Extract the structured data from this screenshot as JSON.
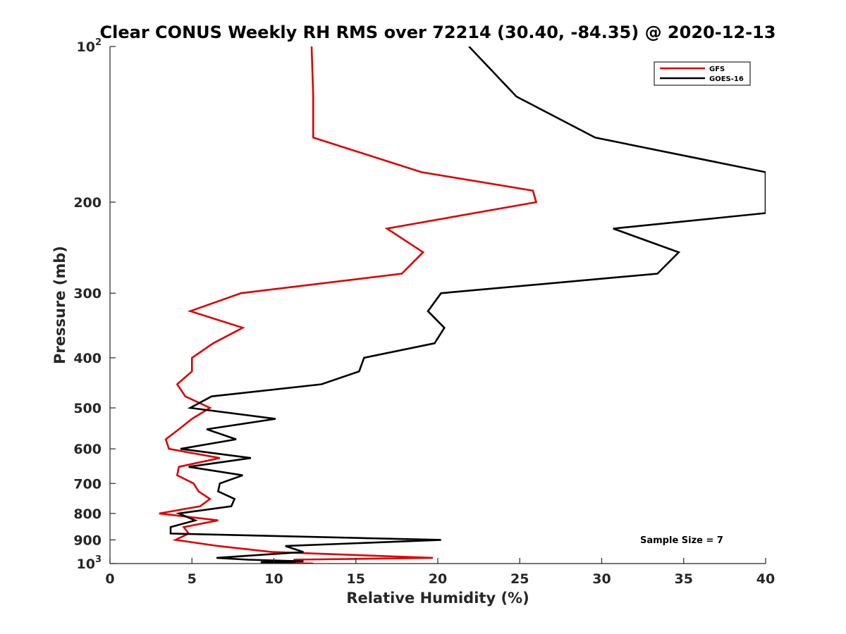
{
  "chart_data": {
    "type": "line",
    "title": "Clear CONUS Weekly RH RMS over 72214 (30.40, -84.35) @ 2020-12-13",
    "xlabel": "Relative Humidity (%)",
    "ylabel": "Pressure (mb)",
    "xlim": [
      0,
      40
    ],
    "ylim": [
      100,
      1000
    ],
    "yscale": "log",
    "yreversed": true,
    "grid": false,
    "x_ticks": [
      {
        "value": 0,
        "label": "0"
      },
      {
        "value": 5,
        "label": "5"
      },
      {
        "value": 10,
        "label": "10"
      },
      {
        "value": 15,
        "label": "15"
      },
      {
        "value": 20,
        "label": "20"
      },
      {
        "value": 25,
        "label": "25"
      },
      {
        "value": 30,
        "label": "30"
      },
      {
        "value": 35,
        "label": "35"
      },
      {
        "value": 40,
        "label": "40"
      }
    ],
    "y_ticks": [
      {
        "value": 100,
        "base": "10",
        "exp": "2"
      },
      {
        "value": 200,
        "label": "200"
      },
      {
        "value": 300,
        "label": "300"
      },
      {
        "value": 400,
        "label": "400"
      },
      {
        "value": 500,
        "label": "500"
      },
      {
        "value": 600,
        "label": "600"
      },
      {
        "value": 700,
        "label": "700"
      },
      {
        "value": 800,
        "label": "800"
      },
      {
        "value": 900,
        "label": "900"
      },
      {
        "value": 1000,
        "base": "10",
        "exp": "3"
      }
    ],
    "legend": {
      "position": "top-right"
    },
    "annotation": "Sample Size = 7",
    "series": [
      {
        "name": "GFS",
        "color": "#e00000",
        "points": [
          [
            12.3,
            100
          ],
          [
            12.4,
            125
          ],
          [
            12.4,
            150
          ],
          [
            19.0,
            175
          ],
          [
            25.8,
            190
          ],
          [
            26.0,
            200
          ],
          [
            16.9,
            225
          ],
          [
            19.1,
            250
          ],
          [
            17.8,
            275
          ],
          [
            8.0,
            300
          ],
          [
            4.9,
            325
          ],
          [
            8.1,
            350
          ],
          [
            6.3,
            375
          ],
          [
            5.0,
            400
          ],
          [
            5.0,
            425
          ],
          [
            4.1,
            450
          ],
          [
            4.6,
            475
          ],
          [
            6.1,
            500
          ],
          [
            5.0,
            525
          ],
          [
            4.2,
            550
          ],
          [
            3.4,
            575
          ],
          [
            3.6,
            600
          ],
          [
            6.7,
            625
          ],
          [
            4.2,
            650
          ],
          [
            4.1,
            675
          ],
          [
            5.1,
            700
          ],
          [
            5.4,
            725
          ],
          [
            6.1,
            750
          ],
          [
            5.5,
            775
          ],
          [
            3.0,
            800
          ],
          [
            6.6,
            825
          ],
          [
            4.5,
            850
          ],
          [
            4.8,
            875
          ],
          [
            4.0,
            900
          ],
          [
            6.6,
            925
          ],
          [
            9.9,
            950
          ],
          [
            19.7,
            975
          ],
          [
            11.2,
            983
          ],
          [
            11.8,
            990
          ],
          [
            9.5,
            994
          ],
          [
            10.6,
            997
          ],
          [
            12.4,
            1000
          ]
        ]
      },
      {
        "name": "GOES-16",
        "color": "#000000",
        "points": [
          [
            21.9,
            100
          ],
          [
            24.8,
            125
          ],
          [
            29.6,
            150
          ],
          [
            40.0,
            175
          ],
          [
            40.0,
            210
          ],
          [
            30.7,
            225
          ],
          [
            34.7,
            250
          ],
          [
            33.4,
            275
          ],
          [
            20.2,
            300
          ],
          [
            19.4,
            325
          ],
          [
            20.4,
            350
          ],
          [
            19.8,
            375
          ],
          [
            15.5,
            400
          ],
          [
            15.2,
            425
          ],
          [
            12.9,
            450
          ],
          [
            6.2,
            475
          ],
          [
            4.9,
            500
          ],
          [
            10.1,
            525
          ],
          [
            5.9,
            550
          ],
          [
            7.7,
            575
          ],
          [
            4.3,
            600
          ],
          [
            8.6,
            625
          ],
          [
            4.8,
            650
          ],
          [
            8.1,
            675
          ],
          [
            6.7,
            700
          ],
          [
            6.6,
            725
          ],
          [
            7.6,
            750
          ],
          [
            7.4,
            775
          ],
          [
            4.2,
            800
          ],
          [
            5.2,
            825
          ],
          [
            3.7,
            850
          ],
          [
            3.7,
            875
          ],
          [
            20.2,
            900
          ],
          [
            10.7,
            925
          ],
          [
            11.8,
            950
          ],
          [
            6.5,
            975
          ],
          [
            8.4,
            983
          ],
          [
            11.8,
            990
          ],
          [
            9.2,
            994
          ],
          [
            9.7,
            997
          ],
          [
            11.3,
            1000
          ]
        ]
      }
    ]
  }
}
